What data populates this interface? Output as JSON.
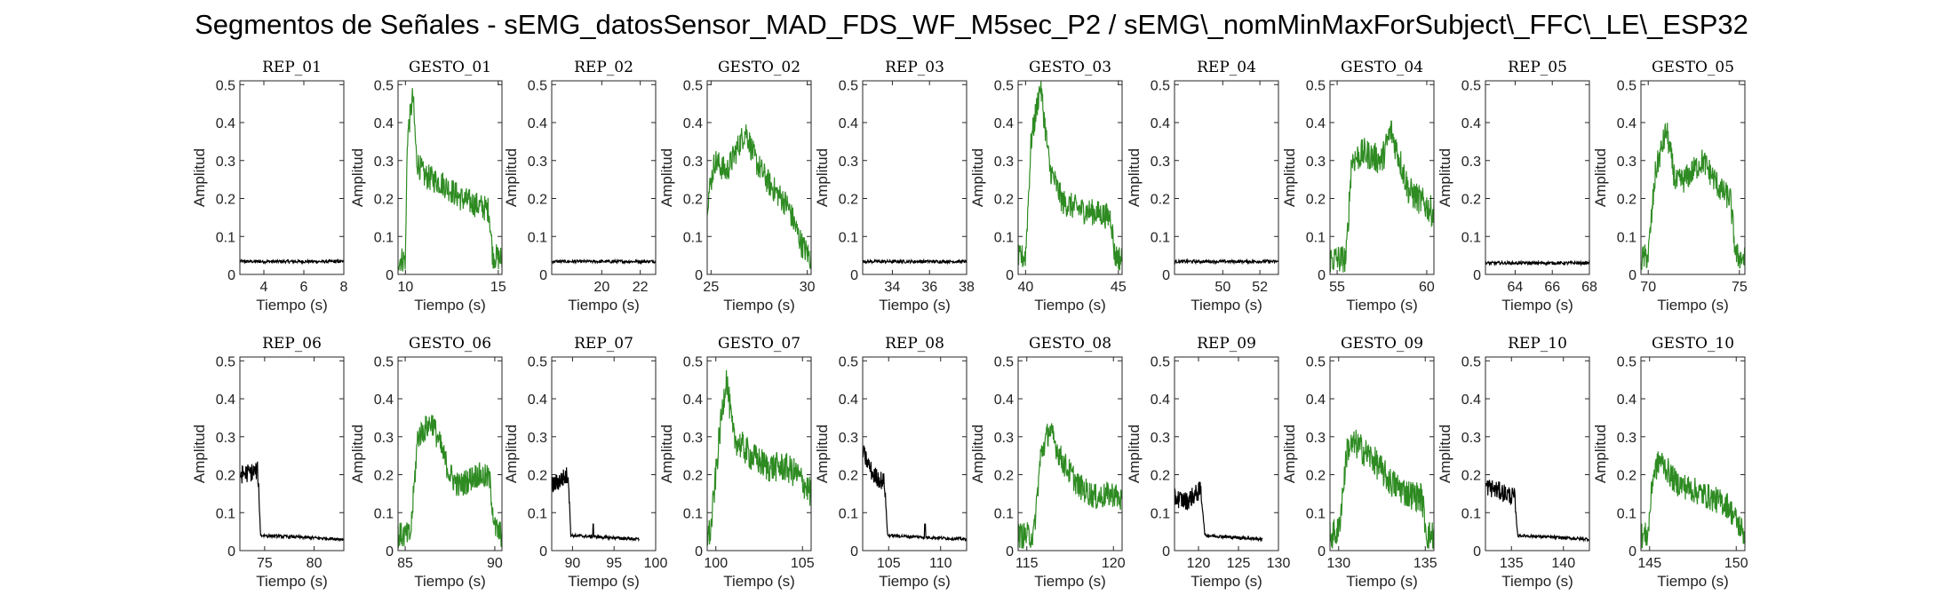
{
  "title": "Segmentos de Señales - sEMG_datosSensor_MAD_FDS_WF_M5sec_P2 / sEMG\\_nomMinMaxForSubject\\_FFC\\_LE\\_ESP32",
  "colors": {
    "rep": "#000000",
    "gesto": "#2e8b22",
    "axis": "#262626"
  },
  "chart_data": [
    {
      "type": "line",
      "title": "REP_01",
      "xlabel": "Tiempo (s)",
      "ylabel": "Amplitud",
      "xlim": [
        2.8,
        8
      ],
      "ylim": [
        0,
        0.51
      ],
      "xticks": [
        4,
        6,
        8
      ],
      "yticks": [
        0,
        0.1,
        0.2,
        0.3,
        0.4,
        0.5
      ],
      "series": [
        {
          "color": "#000000",
          "kind": "rest",
          "x": [
            2.8,
            8
          ],
          "y": [
            0.034,
            0.034
          ],
          "noise": 0.004
        }
      ]
    },
    {
      "type": "line",
      "title": "GESTO_01",
      "xlabel": "Tiempo (s)",
      "ylabel": "Amplitud",
      "xlim": [
        9.6,
        15.2
      ],
      "ylim": [
        0,
        0.51
      ],
      "xticks": [
        10,
        15
      ],
      "yticks": [
        0,
        0.1,
        0.2,
        0.3,
        0.4,
        0.5
      ],
      "series": [
        {
          "color": "#2e8b22",
          "kind": "gesture",
          "x": [
            9.6,
            10.0,
            10.1,
            10.4,
            10.6,
            11.0,
            12.0,
            13.0,
            14.0,
            14.5,
            14.7,
            15.2
          ],
          "y": [
            0.04,
            0.04,
            0.36,
            0.47,
            0.3,
            0.26,
            0.24,
            0.2,
            0.18,
            0.17,
            0.05,
            0.04
          ],
          "noise": 0.035
        }
      ]
    },
    {
      "type": "line",
      "title": "REP_02",
      "xlabel": "Tiempo (s)",
      "ylabel": "Amplitud",
      "xlim": [
        17.4,
        22.8
      ],
      "ylim": [
        0,
        0.51
      ],
      "xticks": [
        20,
        22
      ],
      "yticks": [
        0,
        0.1,
        0.2,
        0.3,
        0.4,
        0.5
      ],
      "series": [
        {
          "color": "#000000",
          "kind": "rest",
          "x": [
            17.4,
            22.8
          ],
          "y": [
            0.034,
            0.034
          ],
          "noise": 0.004
        }
      ]
    },
    {
      "type": "line",
      "title": "GESTO_02",
      "xlabel": "Tiempo (s)",
      "ylabel": "Amplitud",
      "xlim": [
        24.8,
        30.2
      ],
      "ylim": [
        0,
        0.51
      ],
      "xticks": [
        25,
        30
      ],
      "yticks": [
        0,
        0.1,
        0.2,
        0.3,
        0.4,
        0.5
      ],
      "series": [
        {
          "color": "#2e8b22",
          "kind": "gesture",
          "x": [
            24.8,
            25.2,
            25.8,
            26.8,
            27.3,
            28.0,
            29.0,
            29.7,
            30.2
          ],
          "y": [
            0.19,
            0.3,
            0.27,
            0.38,
            0.3,
            0.24,
            0.18,
            0.08,
            0.04
          ],
          "noise": 0.035
        }
      ]
    },
    {
      "type": "line",
      "title": "REP_03",
      "xlabel": "Tiempo (s)",
      "ylabel": "Amplitud",
      "xlim": [
        32.4,
        38
      ],
      "ylim": [
        0,
        0.51
      ],
      "xticks": [
        34,
        36,
        38
      ],
      "yticks": [
        0,
        0.1,
        0.2,
        0.3,
        0.4,
        0.5
      ],
      "series": [
        {
          "color": "#000000",
          "kind": "rest",
          "x": [
            32.4,
            38
          ],
          "y": [
            0.034,
            0.034
          ],
          "noise": 0.004
        }
      ]
    },
    {
      "type": "line",
      "title": "GESTO_03",
      "xlabel": "Tiempo (s)",
      "ylabel": "Amplitud",
      "xlim": [
        39.6,
        45.2
      ],
      "ylim": [
        0,
        0.51
      ],
      "xticks": [
        40,
        45
      ],
      "yticks": [
        0,
        0.1,
        0.2,
        0.3,
        0.4,
        0.5
      ],
      "series": [
        {
          "color": "#2e8b22",
          "kind": "gesture",
          "x": [
            39.6,
            40.0,
            40.3,
            40.8,
            41.3,
            42.0,
            43.0,
            44.0,
            44.6,
            44.8,
            45.2
          ],
          "y": [
            0.04,
            0.05,
            0.35,
            0.5,
            0.28,
            0.19,
            0.17,
            0.16,
            0.15,
            0.05,
            0.04
          ],
          "noise": 0.035
        }
      ]
    },
    {
      "type": "line",
      "title": "REP_04",
      "xlabel": "Tiempo (s)",
      "ylabel": "Amplitud",
      "xlim": [
        47.4,
        53
      ],
      "ylim": [
        0,
        0.51
      ],
      "xticks": [
        50,
        52
      ],
      "yticks": [
        0,
        0.1,
        0.2,
        0.3,
        0.4,
        0.5
      ],
      "series": [
        {
          "color": "#000000",
          "kind": "rest",
          "x": [
            47.4,
            53
          ],
          "y": [
            0.034,
            0.034
          ],
          "noise": 0.004
        }
      ]
    },
    {
      "type": "line",
      "title": "GESTO_04",
      "xlabel": "Tiempo (s)",
      "ylabel": "Amplitud",
      "xlim": [
        54.6,
        60.4
      ],
      "ylim": [
        0,
        0.51
      ],
      "xticks": [
        55,
        60
      ],
      "yticks": [
        0,
        0.1,
        0.2,
        0.3,
        0.4,
        0.5
      ],
      "series": [
        {
          "color": "#2e8b22",
          "kind": "gesture",
          "x": [
            54.6,
            55.5,
            55.8,
            56.5,
            57.5,
            58.0,
            59.0,
            60.0,
            60.4
          ],
          "y": [
            0.04,
            0.04,
            0.3,
            0.32,
            0.3,
            0.38,
            0.22,
            0.18,
            0.16
          ],
          "noise": 0.04
        }
      ]
    },
    {
      "type": "line",
      "title": "REP_05",
      "xlabel": "Tiempo (s)",
      "ylabel": "Amplitud",
      "xlim": [
        62.4,
        68
      ],
      "ylim": [
        0,
        0.51
      ],
      "xticks": [
        64,
        66,
        68
      ],
      "yticks": [
        0,
        0.1,
        0.2,
        0.3,
        0.4,
        0.5
      ],
      "series": [
        {
          "color": "#000000",
          "kind": "rest",
          "x": [
            62.4,
            68
          ],
          "y": [
            0.03,
            0.03
          ],
          "noise": 0.004
        }
      ]
    },
    {
      "type": "line",
      "title": "GESTO_05",
      "xlabel": "Tiempo (s)",
      "ylabel": "Amplitud",
      "xlim": [
        69.6,
        75.3
      ],
      "ylim": [
        0,
        0.51
      ],
      "xticks": [
        70,
        75
      ],
      "yticks": [
        0,
        0.1,
        0.2,
        0.3,
        0.4,
        0.5
      ],
      "series": [
        {
          "color": "#2e8b22",
          "kind": "gesture",
          "x": [
            69.6,
            70.0,
            70.4,
            71.0,
            71.5,
            72.0,
            73.0,
            74.0,
            74.5,
            74.8,
            75.3
          ],
          "y": [
            0.04,
            0.05,
            0.27,
            0.38,
            0.24,
            0.25,
            0.3,
            0.22,
            0.2,
            0.05,
            0.04
          ],
          "noise": 0.035
        }
      ]
    },
    {
      "type": "line",
      "title": "REP_06",
      "xlabel": "Tiempo (s)",
      "ylabel": "Amplitud",
      "xlim": [
        72.5,
        83
      ],
      "ylim": [
        0,
        0.51
      ],
      "xticks": [
        75,
        80
      ],
      "yticks": [
        0,
        0.1,
        0.2,
        0.3,
        0.4,
        0.5
      ],
      "series": [
        {
          "color": "#000000",
          "kind": "rest",
          "x": [
            72.5,
            74.3,
            74.6,
            83
          ],
          "y": [
            0.2,
            0.21,
            0.04,
            0.03
          ],
          "noise": 0.004,
          "noisyUntil": 74.4
        }
      ]
    },
    {
      "type": "line",
      "title": "GESTO_06",
      "xlabel": "Tiempo (s)",
      "ylabel": "Amplitud",
      "xlim": [
        84.6,
        90.4
      ],
      "ylim": [
        0,
        0.51
      ],
      "xticks": [
        85,
        90
      ],
      "yticks": [
        0,
        0.1,
        0.2,
        0.3,
        0.4,
        0.5
      ],
      "series": [
        {
          "color": "#2e8b22",
          "kind": "gesture",
          "x": [
            84.6,
            85.3,
            85.7,
            86.5,
            87.5,
            88.0,
            89.0,
            89.7,
            90.0,
            90.4
          ],
          "y": [
            0.04,
            0.04,
            0.3,
            0.34,
            0.2,
            0.17,
            0.2,
            0.19,
            0.06,
            0.04
          ],
          "noise": 0.035
        }
      ]
    },
    {
      "type": "line",
      "title": "REP_07",
      "xlabel": "Tiempo (s)",
      "ylabel": "Amplitud",
      "xlim": [
        87.5,
        100
      ],
      "ylim": [
        0,
        0.51
      ],
      "xticks": [
        90,
        95,
        100
      ],
      "yticks": [
        0,
        0.1,
        0.2,
        0.3,
        0.4,
        0.5
      ],
      "series": [
        {
          "color": "#000000",
          "kind": "rest",
          "x": [
            87.5,
            89.5,
            89.8,
            98
          ],
          "y": [
            0.17,
            0.2,
            0.04,
            0.03
          ],
          "noise": 0.004,
          "noisyUntil": 89.6,
          "spike": [
            92.5,
            0.07
          ]
        }
      ]
    },
    {
      "type": "line",
      "title": "GESTO_07",
      "xlabel": "Tiempo (s)",
      "ylabel": "Amplitud",
      "xlim": [
        99.5,
        105.5
      ],
      "ylim": [
        0,
        0.51
      ],
      "xticks": [
        100,
        105
      ],
      "yticks": [
        0,
        0.1,
        0.2,
        0.3,
        0.4,
        0.5
      ],
      "series": [
        {
          "color": "#2e8b22",
          "kind": "gesture",
          "x": [
            99.5,
            99.7,
            100.2,
            100.6,
            101.0,
            102.0,
            103.0,
            104.0,
            104.7,
            105.5
          ],
          "y": [
            0.04,
            0.05,
            0.3,
            0.46,
            0.3,
            0.25,
            0.22,
            0.22,
            0.2,
            0.15
          ],
          "noise": 0.04
        }
      ]
    },
    {
      "type": "line",
      "title": "REP_08",
      "xlabel": "Tiempo (s)",
      "ylabel": "Amplitud",
      "xlim": [
        102.5,
        112.5
      ],
      "ylim": [
        0,
        0.51
      ],
      "xticks": [
        105,
        110
      ],
      "yticks": [
        0,
        0.1,
        0.2,
        0.3,
        0.4,
        0.5
      ],
      "series": [
        {
          "color": "#000000",
          "kind": "rest",
          "x": [
            102.5,
            103.5,
            104.6,
            104.9,
            112.5
          ],
          "y": [
            0.26,
            0.2,
            0.18,
            0.04,
            0.03
          ],
          "noise": 0.004,
          "noisyUntil": 104.7,
          "spike": [
            108.5,
            0.07
          ]
        }
      ]
    },
    {
      "type": "line",
      "title": "GESTO_08",
      "xlabel": "Tiempo (s)",
      "ylabel": "Amplitud",
      "xlim": [
        114.5,
        120.5
      ],
      "ylim": [
        0,
        0.51
      ],
      "xticks": [
        115,
        120
      ],
      "yticks": [
        0,
        0.1,
        0.2,
        0.3,
        0.4,
        0.5
      ],
      "series": [
        {
          "color": "#2e8b22",
          "kind": "gesture",
          "x": [
            114.5,
            115.4,
            115.8,
            116.3,
            117.0,
            118.0,
            119.0,
            120.0,
            120.5
          ],
          "y": [
            0.04,
            0.04,
            0.25,
            0.32,
            0.24,
            0.17,
            0.14,
            0.15,
            0.13
          ],
          "noise": 0.035
        }
      ]
    },
    {
      "type": "line",
      "title": "REP_09",
      "xlabel": "Tiempo (s)",
      "ylabel": "Amplitud",
      "xlim": [
        117,
        130
      ],
      "ylim": [
        0,
        0.51
      ],
      "xticks": [
        120,
        125,
        130
      ],
      "yticks": [
        0,
        0.1,
        0.2,
        0.3,
        0.4,
        0.5
      ],
      "series": [
        {
          "color": "#000000",
          "kind": "rest",
          "x": [
            117,
            118.5,
            120.3,
            120.8,
            128
          ],
          "y": [
            0.14,
            0.13,
            0.16,
            0.04,
            0.03
          ],
          "noise": 0.004,
          "noisyUntil": 120.5
        }
      ]
    },
    {
      "type": "line",
      "title": "GESTO_09",
      "xlabel": "Tiempo (s)",
      "ylabel": "Amplitud",
      "xlim": [
        129.5,
        135.5
      ],
      "ylim": [
        0,
        0.51
      ],
      "xticks": [
        130,
        135
      ],
      "yticks": [
        0,
        0.1,
        0.2,
        0.3,
        0.4,
        0.5
      ],
      "series": [
        {
          "color": "#2e8b22",
          "kind": "gesture",
          "x": [
            129.5,
            130.0,
            130.5,
            131.0,
            132.0,
            133.0,
            134.0,
            134.8,
            135.1,
            135.5
          ],
          "y": [
            0.04,
            0.05,
            0.27,
            0.28,
            0.24,
            0.18,
            0.15,
            0.14,
            0.04,
            0.04
          ],
          "noise": 0.04
        }
      ]
    },
    {
      "type": "line",
      "title": "REP_10",
      "xlabel": "Tiempo (s)",
      "ylabel": "Amplitud",
      "xlim": [
        132.5,
        142.5
      ],
      "ylim": [
        0,
        0.51
      ],
      "xticks": [
        135,
        140
      ],
      "yticks": [
        0,
        0.1,
        0.2,
        0.3,
        0.4,
        0.5
      ],
      "series": [
        {
          "color": "#000000",
          "kind": "rest",
          "x": [
            132.5,
            134.5,
            135.3,
            135.6,
            142.5
          ],
          "y": [
            0.17,
            0.15,
            0.14,
            0.04,
            0.03
          ],
          "noise": 0.004,
          "noisyUntil": 135.4
        }
      ]
    },
    {
      "type": "line",
      "title": "GESTO_10",
      "xlabel": "Tiempo (s)",
      "ylabel": "Amplitud",
      "xlim": [
        144.5,
        150.5
      ],
      "ylim": [
        0,
        0.51
      ],
      "xticks": [
        145,
        150
      ],
      "yticks": [
        0,
        0.1,
        0.2,
        0.3,
        0.4,
        0.5
      ],
      "series": [
        {
          "color": "#2e8b22",
          "kind": "gesture",
          "x": [
            144.5,
            144.9,
            145.2,
            145.6,
            146.5,
            147.5,
            148.5,
            149.5,
            150.0,
            150.5
          ],
          "y": [
            0.04,
            0.04,
            0.2,
            0.24,
            0.18,
            0.16,
            0.14,
            0.12,
            0.08,
            0.04
          ],
          "noise": 0.035
        }
      ]
    }
  ]
}
